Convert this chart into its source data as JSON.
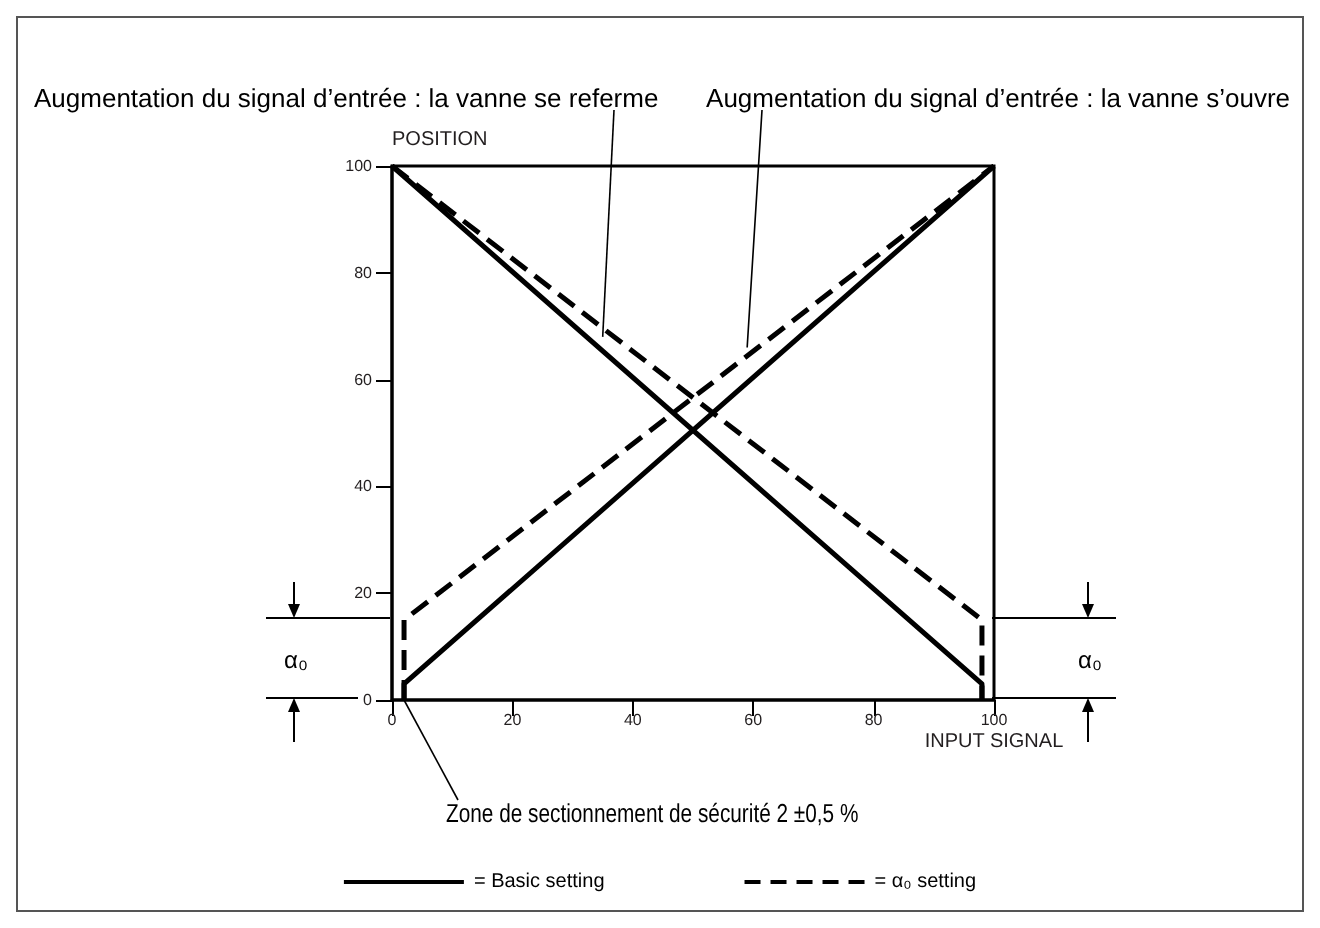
{
  "chart_data": {
    "type": "line",
    "xlabel": "INPUT SIGNAL",
    "ylabel": "POSITION",
    "xlim": [
      0,
      100
    ],
    "ylim": [
      0,
      100
    ],
    "xticks": [
      0,
      20,
      40,
      60,
      80,
      100
    ],
    "yticks": [
      0,
      20,
      40,
      60,
      80,
      100
    ],
    "legend": "bottom",
    "marker": "none",
    "series": [
      {
        "name": "= Basic setting",
        "color": "#000000",
        "line_style": "solid",
        "x": [
          2,
          2,
          100
        ],
        "values": [
          0,
          3,
          100
        ]
      },
      {
        "color": "#000000",
        "line_style": "solid",
        "x": [
          0,
          98,
          98
        ],
        "values": [
          100,
          3,
          0
        ]
      },
      {
        "name": "= α₀ setting",
        "color": "#000000",
        "line_style": "dashed",
        "x": [
          2,
          2,
          100
        ],
        "values": [
          0,
          15,
          100
        ]
      },
      {
        "color": "#000000",
        "line_style": "dashed",
        "x": [
          0,
          98,
          98
        ],
        "values": [
          100,
          15,
          0
        ]
      }
    ],
    "annotations": [
      {
        "text": "Augmentation du signal d’entrée : la vanne se referme",
        "x": 35,
        "y": 68
      },
      {
        "text": "Augmentation du signal d’entrée : la vanne s’ouvre",
        "x": 59,
        "y": 66
      },
      {
        "text": "Zone de sectionnement de sécurité 2 ±0,5 %",
        "x": 2,
        "y": 0
      },
      "α₀",
      "α₀"
    ]
  }
}
